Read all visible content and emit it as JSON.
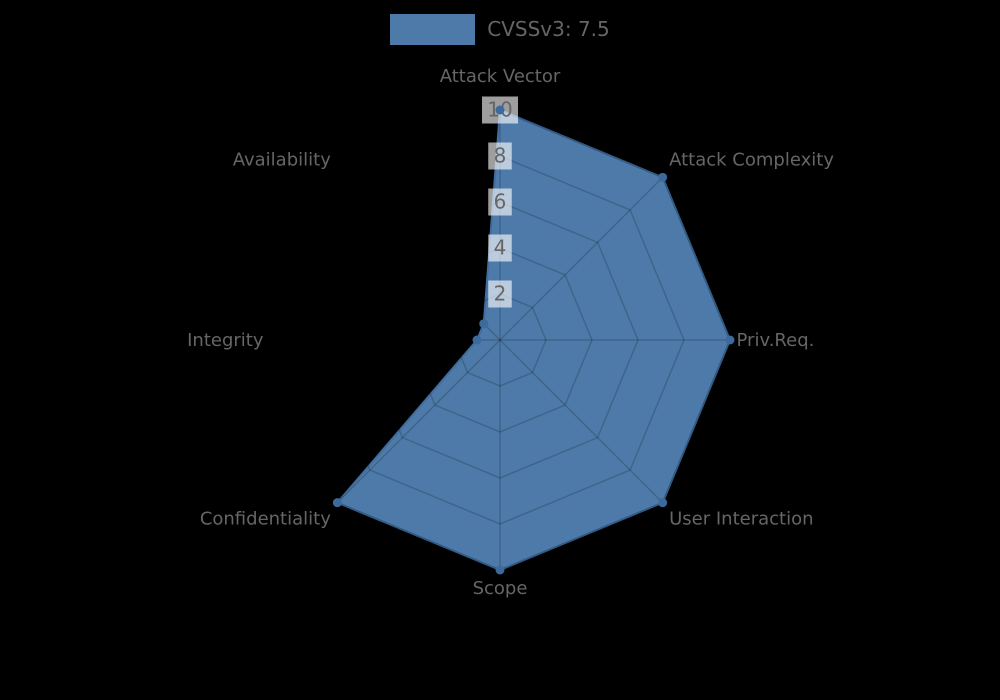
{
  "legend": {
    "label": "CVSSv3: 7.5"
  },
  "chart_data": {
    "type": "radar",
    "title": "CVSSv3: 7.5",
    "legend_position": "top",
    "grid": true,
    "categories": [
      "Attack Vector",
      "Attack Complexity",
      "Priv.Req.",
      "User Interaction",
      "Scope",
      "Confidentiality",
      "Integrity",
      "Availability"
    ],
    "series": [
      {
        "name": "CVSSv3: 7.5",
        "values": [
          10,
          10,
          10,
          10,
          10,
          10,
          1,
          1
        ]
      }
    ],
    "scale": {
      "min": 0,
      "max": 10,
      "ticks": [
        2,
        4,
        6,
        8,
        10
      ]
    },
    "colors": {
      "background": "#000000",
      "fill": "#4d7aa9",
      "stroke": "#3f6d9e",
      "point": "#3c6a9c",
      "grid_line": "rgba(0,0,0,0.18)",
      "tick_backdrop": "rgba(255,255,255,0.62)",
      "tick_text": "#666666",
      "label_text": "#666666"
    }
  }
}
